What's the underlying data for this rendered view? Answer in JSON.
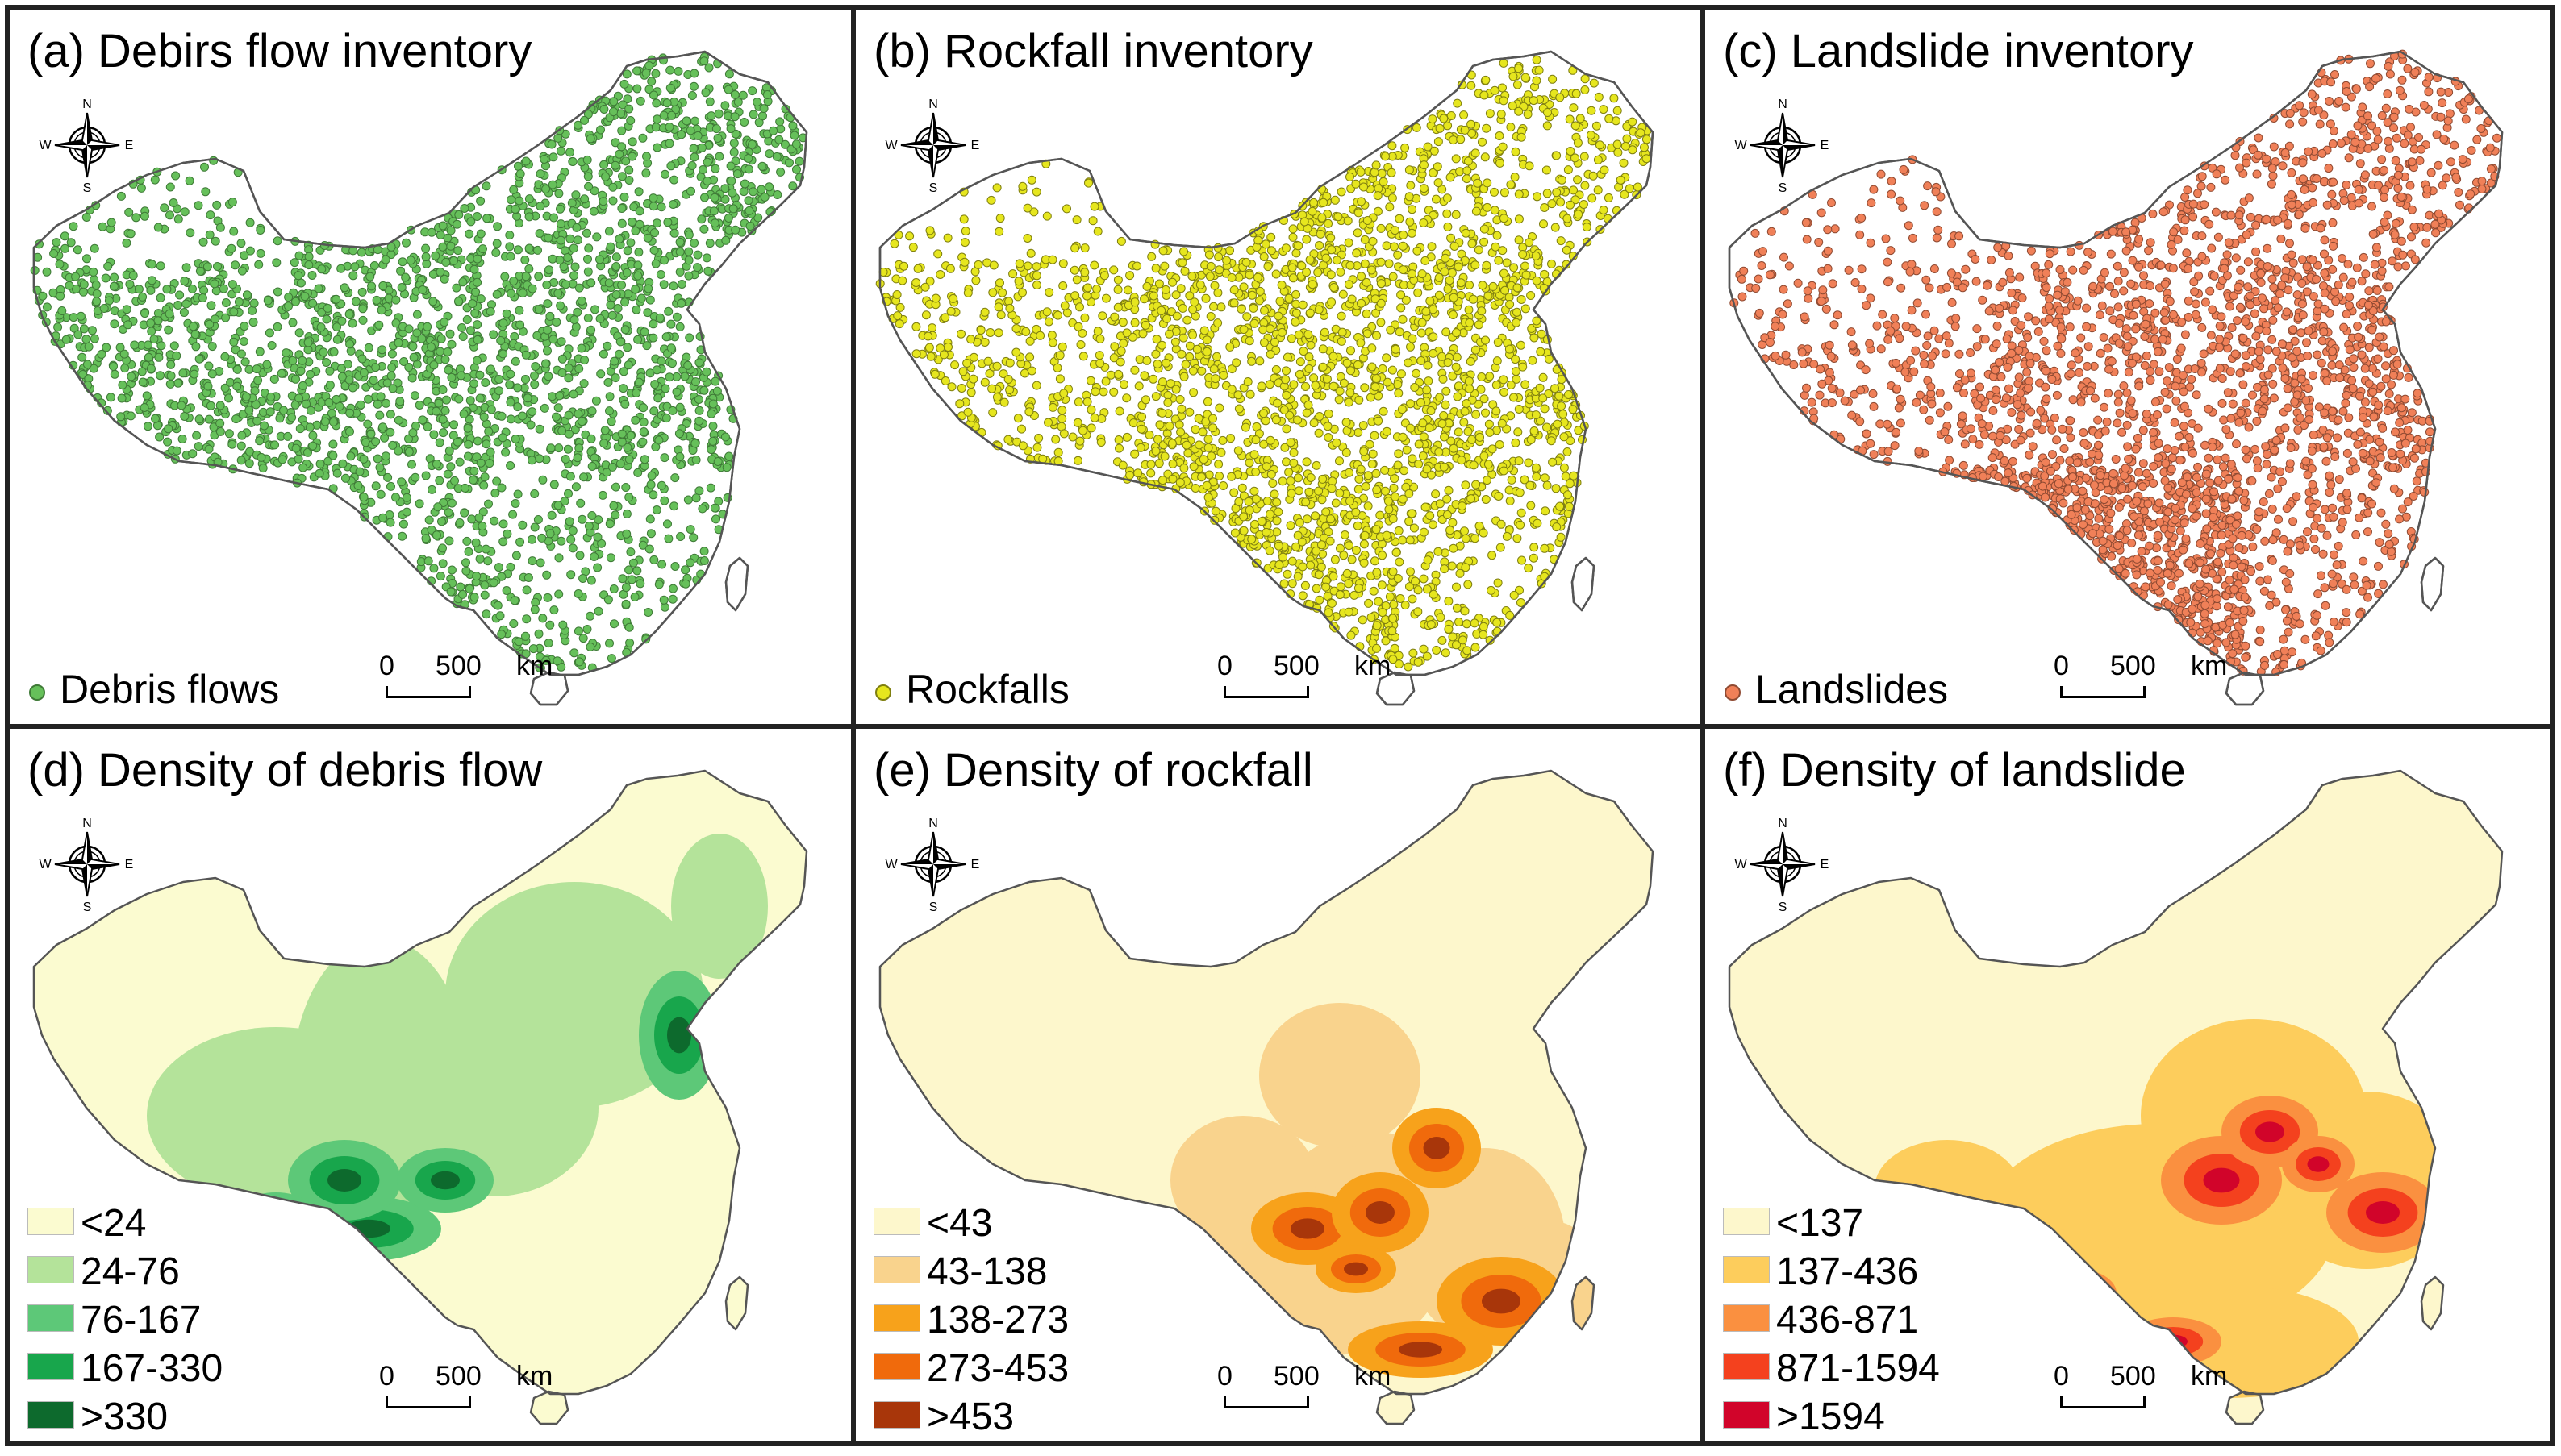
{
  "panels": [
    {
      "title": "(a) Debirs flow inventory",
      "legend_label": "Debris flows",
      "point_color": "#66c05a",
      "point_stroke": "#3f7a37",
      "density_levels": [
        0.2,
        0.55,
        0.55,
        0.55,
        0.6,
        0.6,
        0.4,
        0.4,
        0.3
      ]
    },
    {
      "title": "(b) Rockfall inventory",
      "legend_label": "Rockfalls",
      "point_color": "#e6e61e",
      "point_stroke": "#7f7f10",
      "density_levels": [
        0.1,
        0.5,
        0.4,
        0.35,
        0.55,
        0.6,
        0.8,
        0.7,
        0.4
      ]
    },
    {
      "title": "(c) Landslide inventory",
      "legend_label": "Landslides",
      "point_color": "#f08058",
      "point_stroke": "#8f4a32",
      "density_levels": [
        0.08,
        0.35,
        0.3,
        0.25,
        0.4,
        0.55,
        0.9,
        0.85,
        0.3
      ]
    },
    {
      "title": "(d) Density of debris flow",
      "legend": [
        {
          "label": "<24",
          "color": "#fbfbd0"
        },
        {
          "label": "24-76",
          "color": "#b4e39a"
        },
        {
          "label": "76-167",
          "color": "#5dc878"
        },
        {
          "label": "167-330",
          "color": "#18a64c"
        },
        {
          "label": ">330",
          "color": "#0d6a2d"
        }
      ]
    },
    {
      "title": "(e) Density of rockfall",
      "legend": [
        {
          "label": "<43",
          "color": "#fdf7cc"
        },
        {
          "label": "43-138",
          "color": "#f9d38d"
        },
        {
          "label": "138-273",
          "color": "#f7a21b"
        },
        {
          "label": "273-453",
          "color": "#f06a0c"
        },
        {
          "label": ">453",
          "color": "#a8360a"
        }
      ]
    },
    {
      "title": "(f) Density of landslide",
      "legend": [
        {
          "label": "<137",
          "color": "#fdf7cc"
        },
        {
          "label": "137-436",
          "color": "#fdcd5c"
        },
        {
          "label": "436-871",
          "color": "#fa9040"
        },
        {
          "label": "871-1594",
          "color": "#f4411e"
        },
        {
          "label": ">1594",
          "color": "#d1042a"
        }
      ]
    }
  ],
  "compass": {
    "n": "N",
    "s": "S",
    "e": "E",
    "w": "W"
  },
  "scale": {
    "zero": "0",
    "distance": "500",
    "unit": "km"
  },
  "map_outline_color": "#555555",
  "map_fill_color": "#ffffff"
}
